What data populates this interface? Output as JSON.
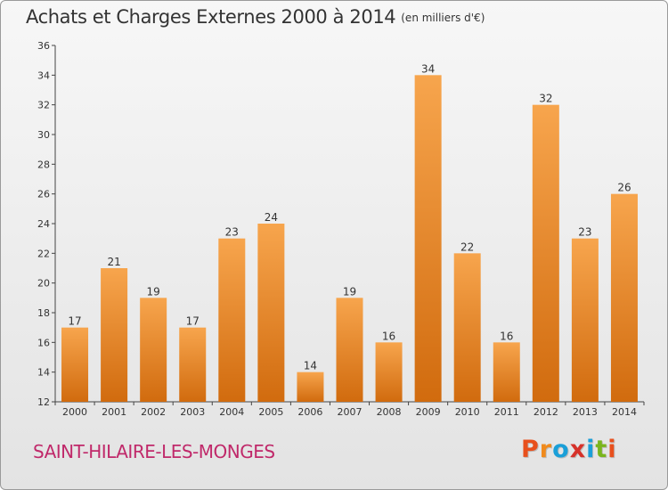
{
  "title": "Achats et Charges Externes 2000 à 2014",
  "subtitle": "(en milliers d'€)",
  "footer": {
    "commune": "SAINT-HILAIRE-LES-MONGES"
  },
  "logo": {
    "text": "Proxiti",
    "colors": [
      "#e8501d",
      "#f08a1c",
      "#1a9fd8",
      "#d6322a",
      "#1a9fd8",
      "#7ab51d",
      "#e8501d"
    ]
  },
  "colors": {
    "bar_top": "#f7a54d",
    "bar_bottom": "#d16b0e",
    "axis": "#444444",
    "grid": "#cccccc",
    "commune": "#c0296a"
  },
  "chart_data": {
    "type": "bar",
    "categories": [
      "2000",
      "2001",
      "2002",
      "2003",
      "2004",
      "2005",
      "2006",
      "2007",
      "2008",
      "2009",
      "2010",
      "2011",
      "2012",
      "2013",
      "2014"
    ],
    "values": [
      17,
      21,
      19,
      17,
      23,
      24,
      14,
      19,
      16,
      34,
      22,
      16,
      32,
      23,
      26
    ],
    "ylim": [
      12,
      36
    ],
    "yticks": [
      12,
      14,
      16,
      18,
      20,
      22,
      24,
      26,
      28,
      30,
      32,
      34,
      36
    ],
    "grid": false,
    "show_data_labels": true
  }
}
